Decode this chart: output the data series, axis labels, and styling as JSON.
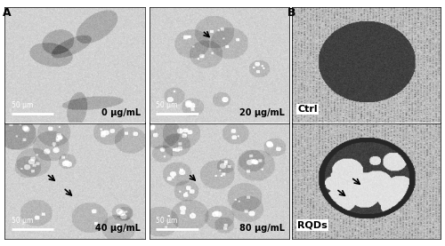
{
  "figsize": [
    5.0,
    2.77
  ],
  "dpi": 100,
  "panel_A_label": "A",
  "panel_B_label": "B",
  "subpanel_labels": [
    "0 μg/mL",
    "20 μg/mL",
    "40 μg/mL",
    "80 μg/mL"
  ],
  "scalebar_label": "50 μm",
  "ctrl_label": "Ctrl",
  "rqds_label": "RQDs",
  "bg_light": "#d8d8d8",
  "bg_medium": "#b0b0b0",
  "bg_dark": "#888888",
  "bg_very_dark": "#444444",
  "label_fontsize": 7,
  "panel_label_fontsize": 9
}
